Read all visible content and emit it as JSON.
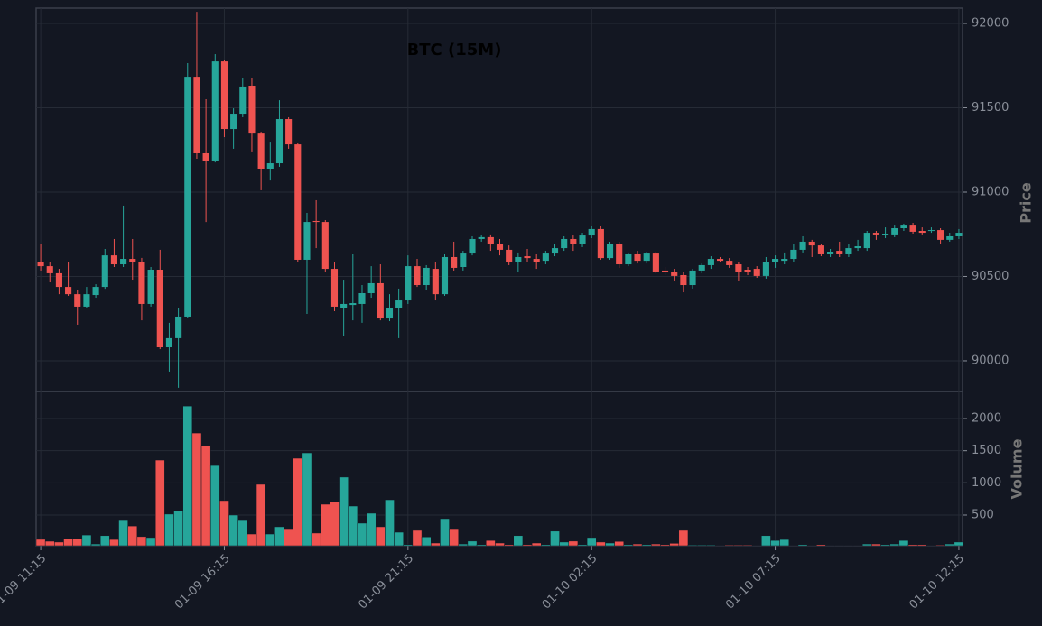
{
  "chart_data": {
    "type": "candlestick",
    "title": "BTC (15M)",
    "ylabel": "Price",
    "up_color": "#26a69a",
    "down_color": "#ef5350",
    "grid": true,
    "xlim": [
      -0.5,
      100.4
    ],
    "xticks": [
      {
        "value": 0,
        "label": "01-09 11:15"
      },
      {
        "value": 20,
        "label": "01-09 16:15"
      },
      {
        "value": 40,
        "label": "01-09 21:15"
      },
      {
        "value": 60,
        "label": "01-10 02:15"
      },
      {
        "value": 80,
        "label": "01-10 07:15"
      },
      {
        "value": 100,
        "label": "01-10 12:15"
      }
    ],
    "ylim": [
      89818,
      92091
    ],
    "yticks": [
      90000,
      90500,
      91000,
      91500,
      92000
    ],
    "open": [
      90583,
      90561,
      90519,
      90438,
      90395,
      90321,
      90390,
      90438,
      90625,
      90572,
      90604,
      90588,
      90337,
      90540,
      90080,
      90134,
      90262,
      91684,
      91230,
      91187,
      91775,
      91374,
      91465,
      91631,
      91347,
      91139,
      91171,
      91433,
      91283,
      90599,
      90829,
      90823,
      90545,
      90315,
      90331,
      90337,
      90401,
      90460,
      90251,
      90310,
      90358,
      90561,
      90449,
      90545,
      90395,
      90615,
      90556,
      90636,
      90722,
      90733,
      90695,
      90658,
      90583,
      90620,
      90604,
      90593,
      90636,
      90668,
      90722,
      90690,
      90743,
      90781,
      90609,
      90695,
      90572,
      90631,
      90593,
      90636,
      90535,
      90529,
      90508,
      90449,
      90535,
      90567,
      90604,
      90593,
      90572,
      90540,
      90545,
      90503,
      90583,
      90593,
      90604,
      90658,
      90706,
      90684,
      90631,
      90652,
      90631,
      90668,
      90668,
      90759,
      90749,
      90749,
      90786,
      90807,
      90770,
      90770,
      90775,
      90717,
      90738
    ],
    "high": [
      90690,
      90588,
      90545,
      90588,
      90417,
      90438,
      90454,
      90663,
      90722,
      90920,
      90722,
      90610,
      90556,
      90658,
      90225,
      90310,
      91765,
      92069,
      91551,
      91818,
      91786,
      91497,
      91674,
      91674,
      91358,
      91299,
      91545,
      91444,
      91294,
      90877,
      90952,
      90834,
      90588,
      90481,
      90631,
      90449,
      90561,
      90572,
      90395,
      90428,
      90625,
      90604,
      90567,
      90588,
      90631,
      90706,
      90652,
      90738,
      90743,
      90749,
      90722,
      90684,
      90642,
      90663,
      90631,
      90652,
      90695,
      90738,
      90743,
      90759,
      90797,
      90797,
      90706,
      90706,
      90642,
      90652,
      90647,
      90647,
      90556,
      90545,
      90524,
      90545,
      90577,
      90620,
      90615,
      90609,
      90588,
      90556,
      90561,
      90615,
      90625,
      90642,
      90690,
      90738,
      90717,
      90695,
      90663,
      90706,
      90690,
      90717,
      90770,
      90770,
      90791,
      90807,
      90813,
      90818,
      90791,
      90791,
      90786,
      90759,
      90781
    ],
    "low": [
      90535,
      90465,
      90395,
      90385,
      90214,
      90310,
      90374,
      90427,
      90556,
      90556,
      90481,
      90240,
      90321,
      90069,
      89936,
      89840,
      90251,
      91198,
      90823,
      91176,
      91326,
      91257,
      91444,
      91241,
      91011,
      91069,
      91150,
      91257,
      90588,
      90278,
      90668,
      90524,
      90294,
      90149,
      90240,
      90225,
      90374,
      90240,
      90235,
      90134,
      90337,
      90438,
      90417,
      90358,
      90385,
      90535,
      90535,
      90625,
      90706,
      90652,
      90625,
      90567,
      90524,
      90588,
      90545,
      90572,
      90620,
      90652,
      90652,
      90674,
      90727,
      90599,
      90599,
      90551,
      90561,
      90577,
      90577,
      90519,
      90508,
      90476,
      90406,
      90428,
      90519,
      90545,
      90583,
      90551,
      90476,
      90508,
      90492,
      90487,
      90551,
      90572,
      90588,
      90642,
      90615,
      90620,
      90615,
      90615,
      90615,
      90652,
      90652,
      90717,
      90727,
      90733,
      90770,
      90754,
      90749,
      90759,
      90695,
      90706,
      90722
    ],
    "close": [
      90561,
      90519,
      90438,
      90395,
      90321,
      90395,
      90438,
      90625,
      90572,
      90604,
      90583,
      90337,
      90540,
      90080,
      90134,
      90262,
      91684,
      91230,
      91187,
      91775,
      91374,
      91465,
      91626,
      91347,
      91139,
      91171,
      91433,
      91283,
      90599,
      90823,
      90823,
      90545,
      90321,
      90337,
      90342,
      90401,
      90460,
      90251,
      90310,
      90358,
      90561,
      90449,
      90551,
      90395,
      90615,
      90551,
      90636,
      90722,
      90733,
      90690,
      90658,
      90583,
      90615,
      90609,
      90588,
      90636,
      90668,
      90722,
      90690,
      90743,
      90781,
      90609,
      90695,
      90572,
      90631,
      90593,
      90636,
      90529,
      90524,
      90503,
      90449,
      90535,
      90567,
      90604,
      90593,
      90567,
      90524,
      90524,
      90503,
      90583,
      90604,
      90604,
      90658,
      90706,
      90684,
      90631,
      90647,
      90631,
      90668,
      90679,
      90759,
      90749,
      90754,
      90786,
      90807,
      90765,
      90759,
      90775,
      90717,
      90738,
      90759
    ],
    "volume": {
      "ylabel": "Volume",
      "ylim": [
        23,
        2421
      ],
      "yticks": [
        500,
        1000,
        1500,
        2000
      ],
      "values": [
        122,
        93,
        80,
        135,
        135,
        190,
        50,
        180,
        120,
        415,
        330,
        165,
        150,
        1355,
        515,
        570,
        2195,
        1775,
        1580,
        1270,
        725,
        500,
        415,
        205,
        977,
        205,
        318,
        275,
        1383,
        1467,
        220,
        668,
        710,
        1090,
        640,
        374,
        528,
        318,
        738,
        233,
        40,
        262,
        160,
        65,
        444,
        275,
        50,
        95,
        40,
        105,
        65,
        40,
        180,
        40,
        65,
        40,
        250,
        80,
        95,
        40,
        150,
        80,
        65,
        90,
        40,
        50,
        40,
        50,
        40,
        60,
        262,
        35,
        35,
        35,
        30,
        35,
        35,
        35,
        30,
        180,
        105,
        120,
        30,
        40,
        30,
        40,
        30,
        30,
        30,
        30,
        50,
        50,
        40,
        50,
        105,
        40,
        40,
        30,
        35,
        50,
        80
      ]
    }
  }
}
